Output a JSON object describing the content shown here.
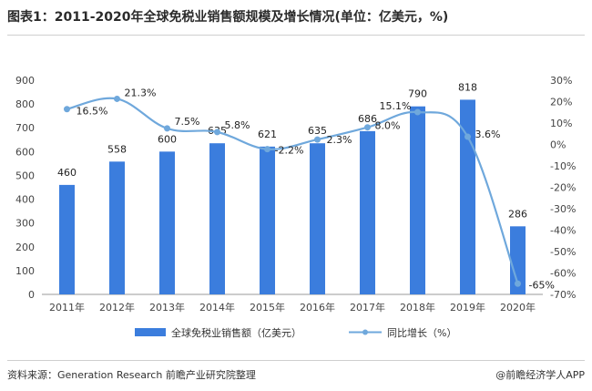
{
  "title": "图表1：2011-2020年全球免税业销售额规模及增长情况(单位：亿美元，%)",
  "source": "资料来源：Generation Research 前瞻产业研究院整理",
  "brand": "@前瞻经济学人APP",
  "colors": {
    "bar": "#3b7ddd",
    "line": "#6fa8dc",
    "axis": "#999999"
  },
  "chart_data": {
    "type": "bar",
    "categories": [
      "2011年",
      "2012年",
      "2013年",
      "2014年",
      "2015年",
      "2016年",
      "2017年",
      "2018年",
      "2019年",
      "2020年"
    ],
    "series": [
      {
        "name": "全球免税业销售额（亿美元）",
        "type": "bar",
        "axis": "left",
        "values": [
          460,
          558,
          600,
          635,
          621,
          635,
          686,
          790,
          818,
          286
        ],
        "labels": [
          "460",
          "558",
          "600",
          "635",
          "621",
          "635",
          "686",
          "790",
          "818",
          "286"
        ]
      },
      {
        "name": "同比增长（%）",
        "type": "line",
        "axis": "right",
        "values": [
          16.5,
          21.3,
          7.5,
          5.8,
          -2.2,
          2.3,
          8.0,
          15.1,
          3.6,
          -65
        ],
        "labels": [
          "16.5%",
          "21.3%",
          "7.5%",
          "5.8%",
          "-2.2%",
          "2.3%",
          "8.0%",
          "15.1%",
          "3.6%",
          "-65%"
        ]
      }
    ],
    "y_left": {
      "min": 0,
      "max": 900,
      "step": 100,
      "ticks": [
        "0",
        "100",
        "200",
        "300",
        "400",
        "500",
        "600",
        "700",
        "800",
        "900"
      ]
    },
    "y_right": {
      "min": -70,
      "max": 30,
      "step": 10,
      "ticks": [
        "-70%",
        "-60%",
        "-50%",
        "-40%",
        "-30%",
        "-20%",
        "-10%",
        "0%",
        "10%",
        "20%",
        "30%"
      ]
    },
    "legend_position": "bottom",
    "grid": false
  }
}
